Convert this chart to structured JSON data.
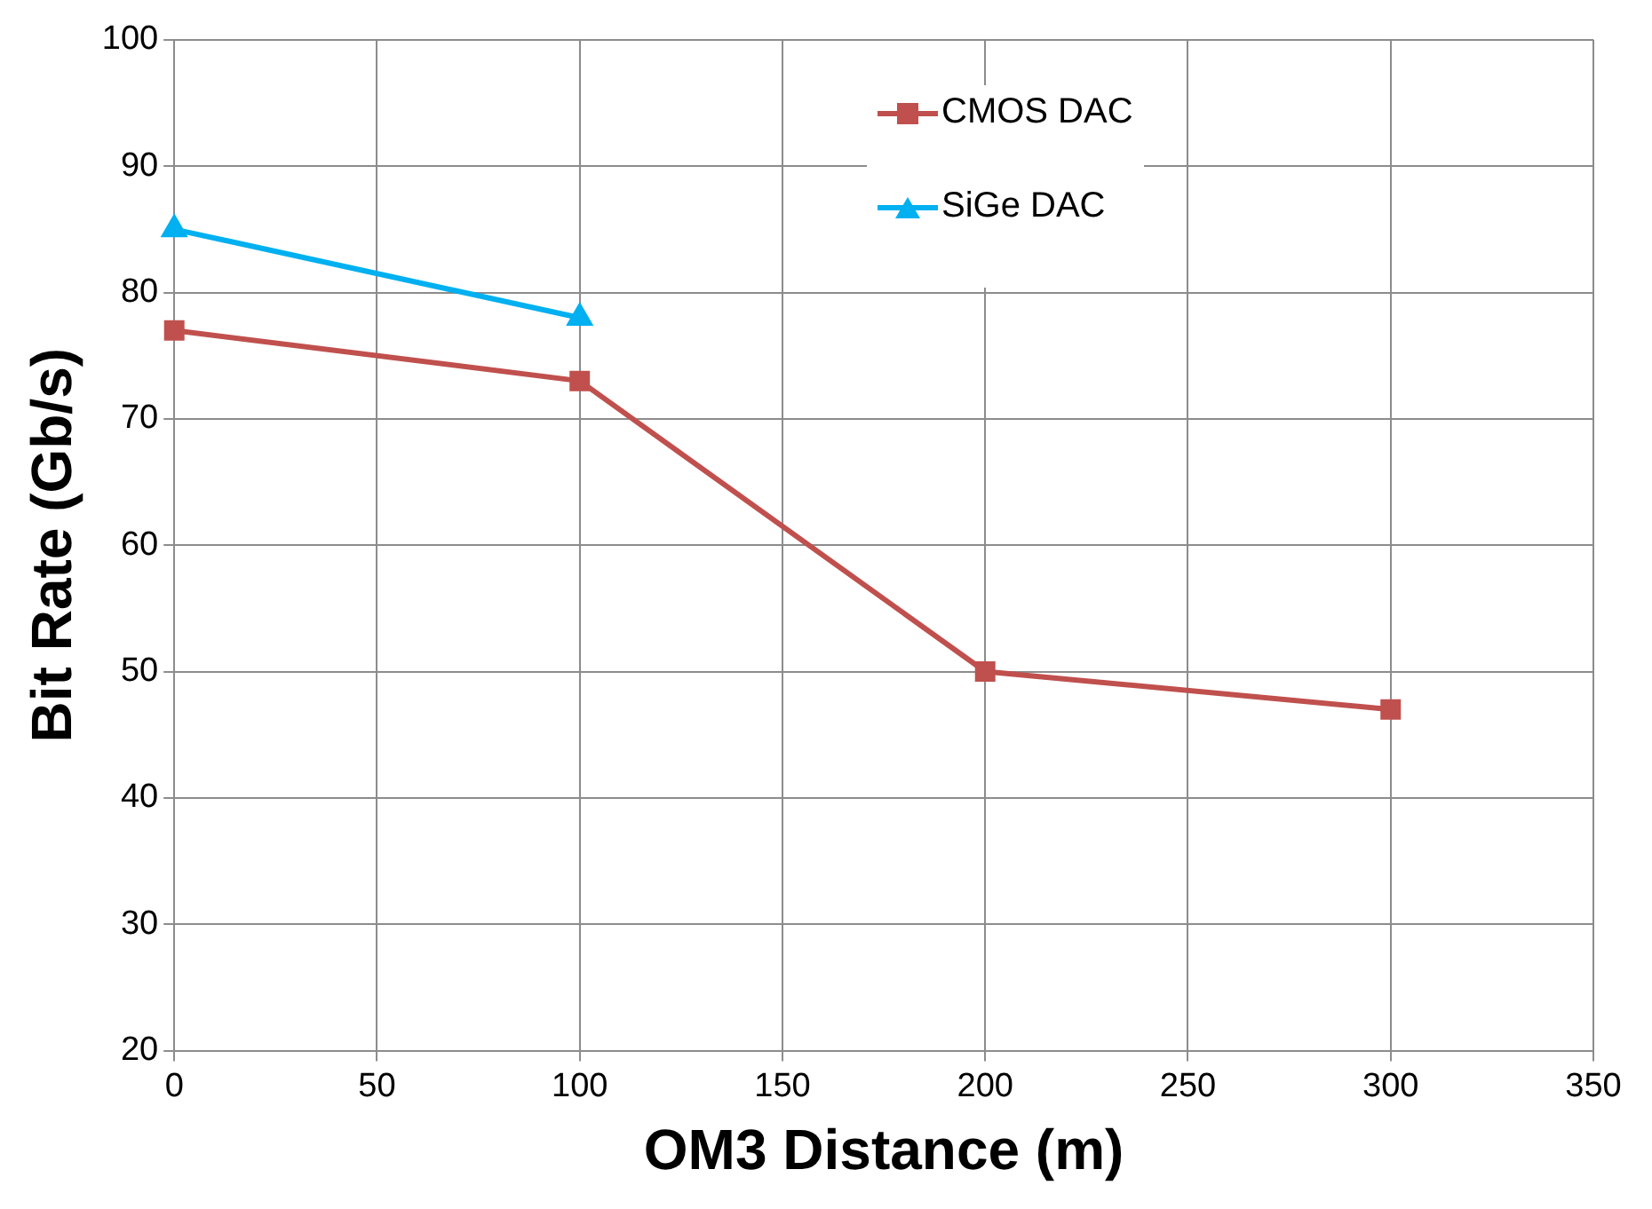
{
  "chart_data": {
    "type": "line",
    "xlabel": "OM3 Distance (m)",
    "ylabel": "Bit Rate (Gb/s)",
    "series": [
      {
        "name": "CMOS DAC",
        "color": "#c0504d",
        "x": [
          0,
          100,
          200,
          300
        ],
        "values": [
          77,
          73,
          50,
          47
        ],
        "marker": "square"
      },
      {
        "name": "SiGe DAC",
        "color": "#00b0f0",
        "x": [
          0,
          100
        ],
        "values": [
          85,
          78
        ],
        "marker": "triangle"
      }
    ],
    "xlim": [
      0,
      350
    ],
    "xticks": [
      0,
      50,
      100,
      150,
      200,
      250,
      300,
      350
    ],
    "ylim": [
      20,
      100
    ],
    "yticks": [
      20,
      30,
      40,
      50,
      60,
      70,
      80,
      90,
      100
    ],
    "grid": true,
    "legend": "top right",
    "line_style": "solid"
  }
}
